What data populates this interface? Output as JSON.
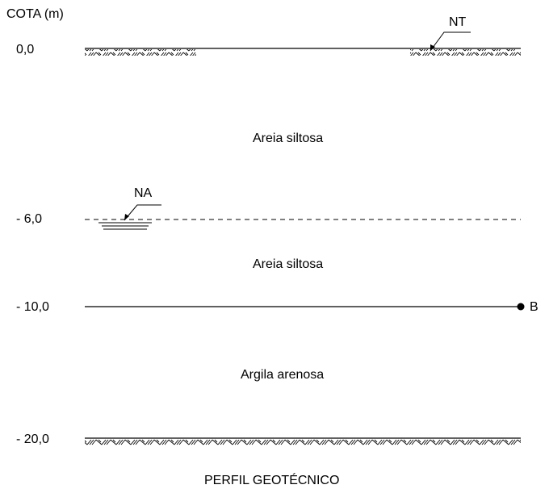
{
  "axis_title": "COTA (m)",
  "elevations": [
    "0,0",
    "- 6,0",
    "- 10,0",
    "- 20,0"
  ],
  "markers": {
    "ground_level": "NT",
    "water_table": "NA",
    "point": "B"
  },
  "layers": [
    "Areia siltosa",
    "Areia siltosa",
    "Argila arenosa"
  ],
  "caption": "PERFIL GEOTÉCNICO",
  "colors": {
    "ink": "#000000",
    "background": "#ffffff"
  }
}
